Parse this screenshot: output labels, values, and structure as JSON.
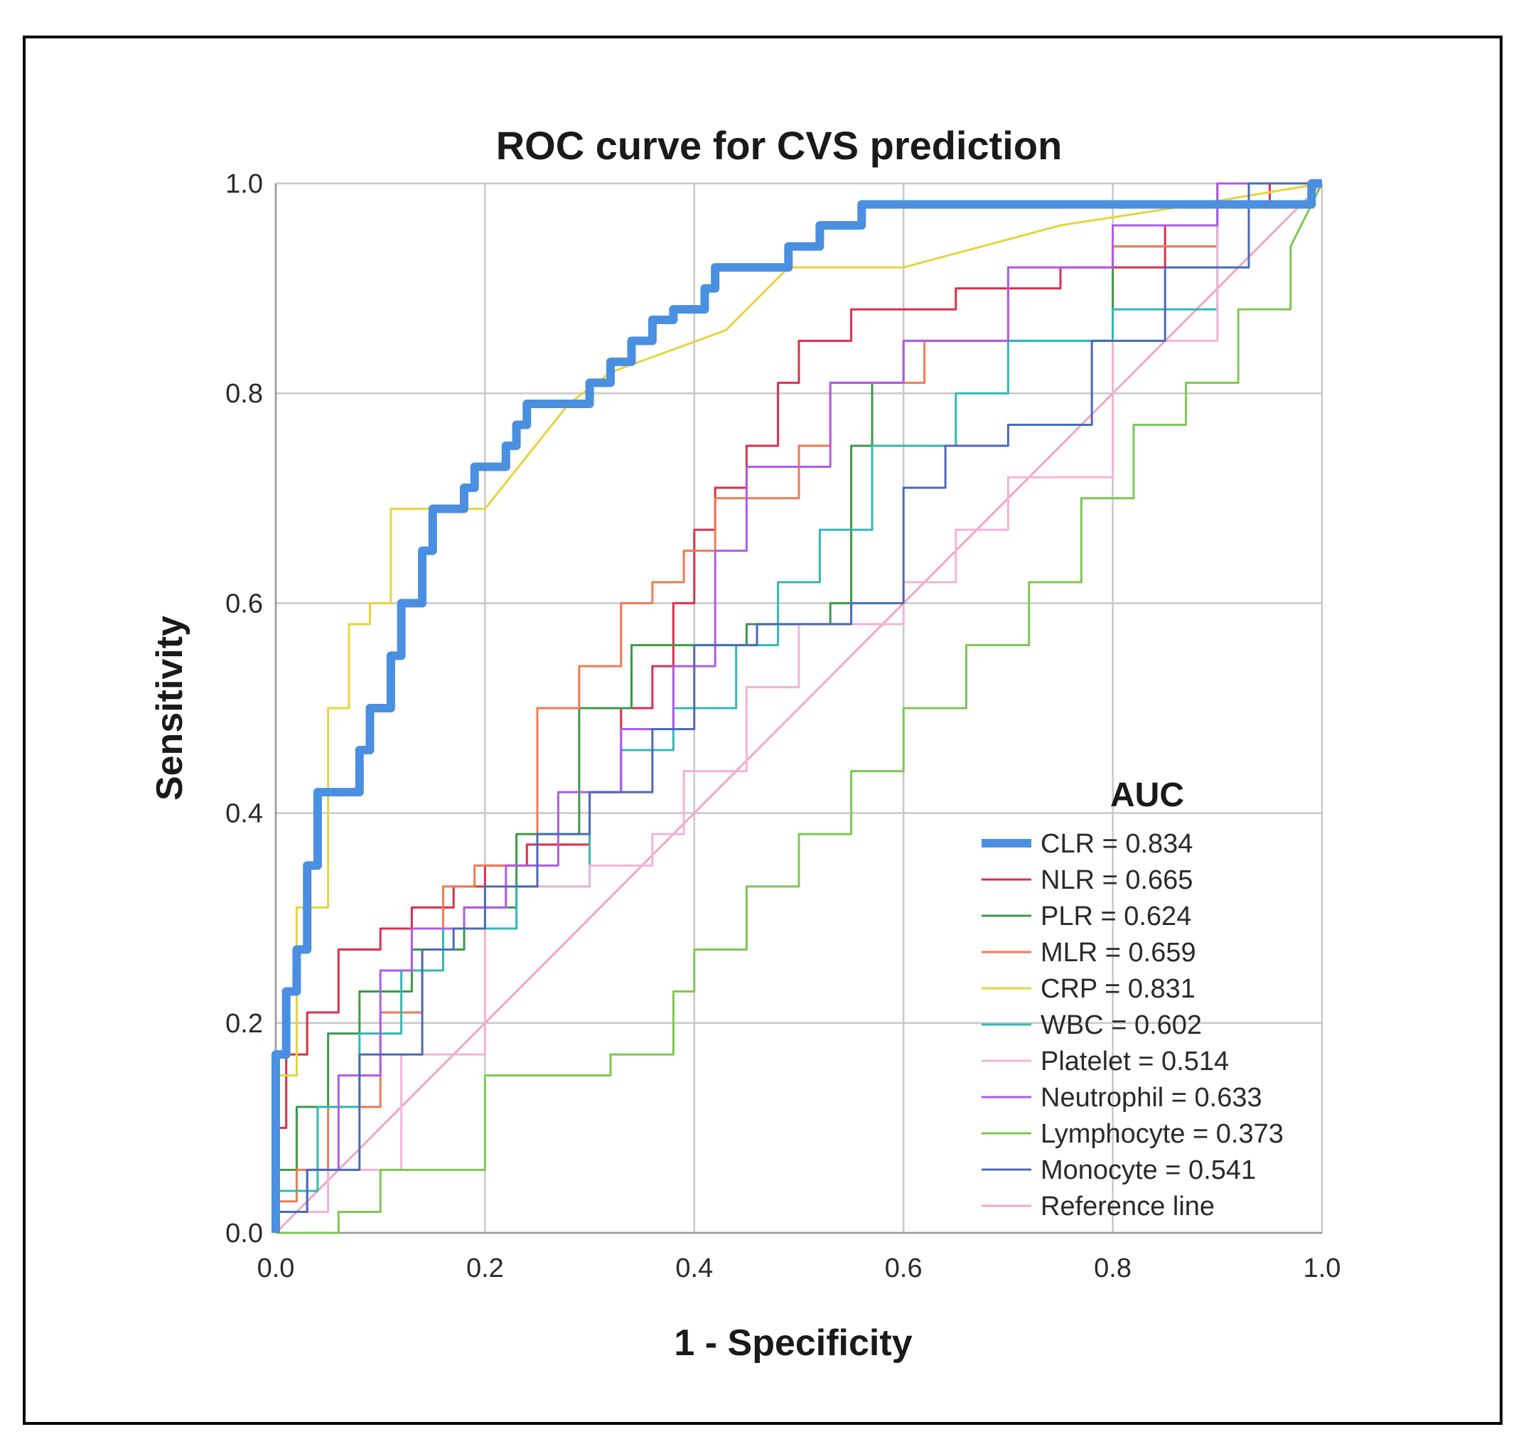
{
  "chart_data": {
    "type": "line",
    "title": "ROC curve for CVS prediction",
    "xlabel": "1 - Specificity",
    "ylabel": "Sensitivity",
    "xlim": [
      0,
      1
    ],
    "ylim": [
      0,
      1
    ],
    "xticks": [
      "0.0",
      "0.2",
      "0.4",
      "0.6",
      "0.8",
      "1.0"
    ],
    "yticks": [
      "0.0",
      "0.2",
      "0.4",
      "0.6",
      "0.8",
      "1.0"
    ],
    "grid": true,
    "legend_title": "AUC",
    "legend_position": "bottom-right",
    "series": [
      {
        "name": "CLR = 0.834",
        "color": "#4a8fe0",
        "emphasis": true,
        "x": [
          0,
          0,
          0.01,
          0.01,
          0.02,
          0.02,
          0.03,
          0.03,
          0.04,
          0.04,
          0.08,
          0.08,
          0.09,
          0.09,
          0.11,
          0.11,
          0.12,
          0.12,
          0.14,
          0.14,
          0.15,
          0.15,
          0.18,
          0.18,
          0.19,
          0.19,
          0.22,
          0.22,
          0.23,
          0.23,
          0.24,
          0.24,
          0.3,
          0.3,
          0.32,
          0.32,
          0.34,
          0.34,
          0.36,
          0.36,
          0.38,
          0.38,
          0.41,
          0.41,
          0.42,
          0.42,
          0.49,
          0.49,
          0.52,
          0.52,
          0.56,
          0.56,
          0.69,
          0.69,
          0.7,
          0.7,
          0.91,
          0.91,
          0.99,
          0.99,
          1
        ],
        "y": [
          0,
          0.17,
          0.17,
          0.23,
          0.23,
          0.27,
          0.27,
          0.35,
          0.35,
          0.42,
          0.42,
          0.46,
          0.46,
          0.5,
          0.5,
          0.55,
          0.55,
          0.6,
          0.6,
          0.65,
          0.65,
          0.69,
          0.69,
          0.71,
          0.71,
          0.73,
          0.73,
          0.75,
          0.75,
          0.77,
          0.77,
          0.79,
          0.79,
          0.81,
          0.81,
          0.83,
          0.83,
          0.85,
          0.85,
          0.87,
          0.87,
          0.88,
          0.88,
          0.9,
          0.9,
          0.92,
          0.92,
          0.94,
          0.94,
          0.96,
          0.96,
          0.98,
          0.98,
          0.98,
          0.98,
          0.98,
          0.98,
          0.98,
          0.98,
          1,
          1
        ]
      },
      {
        "name": "NLR = 0.665",
        "color": "#dc2f4a",
        "x": [
          0,
          0,
          0.01,
          0.01,
          0.03,
          0.03,
          0.06,
          0.06,
          0.1,
          0.1,
          0.13,
          0.13,
          0.17,
          0.17,
          0.2,
          0.2,
          0.24,
          0.24,
          0.3,
          0.3,
          0.33,
          0.33,
          0.36,
          0.36,
          0.38,
          0.38,
          0.4,
          0.4,
          0.42,
          0.42,
          0.45,
          0.45,
          0.48,
          0.48,
          0.5,
          0.5,
          0.55,
          0.55,
          0.65,
          0.65,
          0.75,
          0.75,
          0.85,
          0.85,
          0.9,
          0.9,
          0.95,
          0.95,
          1
        ],
        "y": [
          0,
          0.1,
          0.1,
          0.17,
          0.17,
          0.21,
          0.21,
          0.27,
          0.27,
          0.29,
          0.29,
          0.31,
          0.31,
          0.33,
          0.33,
          0.35,
          0.35,
          0.37,
          0.37,
          0.42,
          0.42,
          0.5,
          0.5,
          0.54,
          0.54,
          0.6,
          0.6,
          0.67,
          0.67,
          0.71,
          0.71,
          0.75,
          0.75,
          0.81,
          0.81,
          0.85,
          0.85,
          0.88,
          0.88,
          0.9,
          0.9,
          0.92,
          0.92,
          0.96,
          0.96,
          0.98,
          0.98,
          1,
          1
        ]
      },
      {
        "name": "PLR = 0.624",
        "color": "#3a9a48",
        "x": [
          0,
          0,
          0.02,
          0.02,
          0.05,
          0.05,
          0.08,
          0.08,
          0.13,
          0.13,
          0.18,
          0.18,
          0.23,
          0.23,
          0.29,
          0.29,
          0.34,
          0.34,
          0.45,
          0.45,
          0.53,
          0.53,
          0.55,
          0.55,
          0.57,
          0.57,
          0.6,
          0.6,
          0.7,
          0.7,
          0.8,
          0.8,
          0.9,
          0.9,
          1
        ],
        "y": [
          0,
          0.06,
          0.06,
          0.12,
          0.12,
          0.19,
          0.19,
          0.23,
          0.23,
          0.27,
          0.27,
          0.31,
          0.31,
          0.38,
          0.38,
          0.5,
          0.5,
          0.56,
          0.56,
          0.58,
          0.58,
          0.6,
          0.6,
          0.75,
          0.75,
          0.81,
          0.81,
          0.85,
          0.85,
          0.85,
          0.85,
          0.94,
          0.94,
          1,
          1
        ]
      },
      {
        "name": "MLR = 0.659",
        "color": "#f07a52",
        "x": [
          0,
          0,
          0.02,
          0.02,
          0.05,
          0.05,
          0.1,
          0.1,
          0.14,
          0.14,
          0.16,
          0.16,
          0.19,
          0.19,
          0.25,
          0.25,
          0.29,
          0.29,
          0.33,
          0.33,
          0.36,
          0.36,
          0.39,
          0.39,
          0.42,
          0.42,
          0.5,
          0.5,
          0.53,
          0.53,
          0.62,
          0.62,
          0.7,
          0.7,
          0.8,
          0.8,
          0.9,
          0.9,
          1
        ],
        "y": [
          0,
          0.03,
          0.03,
          0.06,
          0.06,
          0.12,
          0.12,
          0.21,
          0.21,
          0.27,
          0.27,
          0.33,
          0.33,
          0.35,
          0.35,
          0.5,
          0.5,
          0.54,
          0.54,
          0.6,
          0.6,
          0.62,
          0.62,
          0.65,
          0.65,
          0.7,
          0.7,
          0.75,
          0.75,
          0.81,
          0.81,
          0.85,
          0.85,
          0.92,
          0.92,
          0.94,
          0.94,
          1,
          1
        ]
      },
      {
        "name": "CRP = 0.831",
        "color": "#e8d43a",
        "x": [
          0,
          0,
          0.02,
          0.02,
          0.05,
          0.05,
          0.07,
          0.07,
          0.09,
          0.09,
          0.11,
          0.11,
          0.2,
          0.28,
          0.32,
          0.43,
          0.49,
          0.6,
          0.75,
          0.88,
          1
        ],
        "y": [
          0,
          0.15,
          0.15,
          0.31,
          0.31,
          0.5,
          0.5,
          0.58,
          0.58,
          0.6,
          0.6,
          0.69,
          0.69,
          0.79,
          0.82,
          0.86,
          0.92,
          0.92,
          0.96,
          0.98,
          1
        ]
      },
      {
        "name": "WBC = 0.602",
        "color": "#33b8b8",
        "x": [
          0,
          0,
          0.04,
          0.04,
          0.08,
          0.08,
          0.12,
          0.12,
          0.16,
          0.16,
          0.23,
          0.23,
          0.3,
          0.3,
          0.33,
          0.33,
          0.38,
          0.38,
          0.44,
          0.44,
          0.48,
          0.48,
          0.52,
          0.52,
          0.57,
          0.57,
          0.65,
          0.65,
          0.7,
          0.7,
          0.8,
          0.8,
          0.9,
          0.9,
          1
        ],
        "y": [
          0,
          0.04,
          0.04,
          0.12,
          0.12,
          0.19,
          0.19,
          0.25,
          0.25,
          0.29,
          0.29,
          0.33,
          0.33,
          0.42,
          0.42,
          0.46,
          0.46,
          0.5,
          0.5,
          0.56,
          0.56,
          0.62,
          0.62,
          0.67,
          0.67,
          0.75,
          0.75,
          0.8,
          0.8,
          0.85,
          0.85,
          0.88,
          0.88,
          1,
          1
        ]
      },
      {
        "name": "Platelet = 0.514",
        "color": "#f4b3d3",
        "x": [
          0,
          0,
          0.05,
          0.05,
          0.12,
          0.12,
          0.2,
          0.2,
          0.22,
          0.22,
          0.3,
          0.3,
          0.36,
          0.36,
          0.39,
          0.39,
          0.45,
          0.45,
          0.5,
          0.5,
          0.6,
          0.6,
          0.65,
          0.65,
          0.7,
          0.7,
          0.8,
          0.8,
          0.9,
          0.9,
          1
        ],
        "y": [
          0,
          0.02,
          0.02,
          0.06,
          0.06,
          0.17,
          0.17,
          0.31,
          0.31,
          0.33,
          0.33,
          0.35,
          0.35,
          0.38,
          0.38,
          0.44,
          0.44,
          0.52,
          0.52,
          0.58,
          0.58,
          0.62,
          0.62,
          0.67,
          0.67,
          0.72,
          0.72,
          0.85,
          0.85,
          1,
          1
        ]
      },
      {
        "name": "Neutrophil = 0.633",
        "color": "#b05ae8",
        "x": [
          0,
          0,
          0.03,
          0.03,
          0.06,
          0.06,
          0.1,
          0.1,
          0.13,
          0.13,
          0.18,
          0.18,
          0.22,
          0.22,
          0.27,
          0.27,
          0.33,
          0.33,
          0.38,
          0.38,
          0.42,
          0.42,
          0.45,
          0.45,
          0.53,
          0.53,
          0.6,
          0.6,
          0.7,
          0.7,
          0.8,
          0.8,
          0.9,
          0.9,
          1
        ],
        "y": [
          0,
          0.02,
          0.02,
          0.06,
          0.06,
          0.15,
          0.15,
          0.25,
          0.25,
          0.29,
          0.29,
          0.31,
          0.31,
          0.35,
          0.35,
          0.42,
          0.42,
          0.48,
          0.48,
          0.54,
          0.54,
          0.65,
          0.65,
          0.73,
          0.73,
          0.81,
          0.81,
          0.85,
          0.85,
          0.92,
          0.92,
          0.96,
          0.96,
          1,
          1
        ]
      },
      {
        "name": "Lymphocyte = 0.373",
        "color": "#7cc850",
        "x": [
          0,
          0.06,
          0.06,
          0.1,
          0.1,
          0.2,
          0.2,
          0.32,
          0.32,
          0.38,
          0.38,
          0.4,
          0.4,
          0.45,
          0.45,
          0.5,
          0.5,
          0.55,
          0.55,
          0.6,
          0.6,
          0.66,
          0.66,
          0.72,
          0.72,
          0.77,
          0.77,
          0.82,
          0.82,
          0.87,
          0.87,
          0.92,
          0.92,
          0.97,
          0.97,
          1
        ],
        "y": [
          0,
          0,
          0.02,
          0.02,
          0.06,
          0.06,
          0.15,
          0.15,
          0.17,
          0.17,
          0.23,
          0.23,
          0.27,
          0.27,
          0.33,
          0.33,
          0.38,
          0.38,
          0.44,
          0.44,
          0.5,
          0.5,
          0.56,
          0.56,
          0.62,
          0.62,
          0.7,
          0.7,
          0.77,
          0.77,
          0.81,
          0.81,
          0.88,
          0.88,
          0.94,
          1
        ]
      },
      {
        "name": "Monocyte = 0.541",
        "color": "#4a6ab8",
        "x": [
          0,
          0,
          0.03,
          0.03,
          0.08,
          0.08,
          0.14,
          0.14,
          0.17,
          0.17,
          0.2,
          0.2,
          0.25,
          0.25,
          0.3,
          0.3,
          0.36,
          0.36,
          0.4,
          0.4,
          0.46,
          0.46,
          0.55,
          0.55,
          0.6,
          0.6,
          0.64,
          0.64,
          0.7,
          0.7,
          0.78,
          0.78,
          0.85,
          0.85,
          0.93,
          0.93,
          1
        ],
        "y": [
          0,
          0.02,
          0.02,
          0.06,
          0.06,
          0.17,
          0.17,
          0.27,
          0.27,
          0.29,
          0.29,
          0.33,
          0.33,
          0.38,
          0.38,
          0.42,
          0.42,
          0.48,
          0.48,
          0.56,
          0.56,
          0.58,
          0.58,
          0.6,
          0.6,
          0.71,
          0.71,
          0.75,
          0.75,
          0.77,
          0.77,
          0.85,
          0.85,
          0.92,
          0.92,
          1,
          1
        ]
      },
      {
        "name": "Reference line",
        "color": "#f2a6c6",
        "x": [
          0,
          1
        ],
        "y": [
          0,
          1
        ]
      }
    ]
  }
}
